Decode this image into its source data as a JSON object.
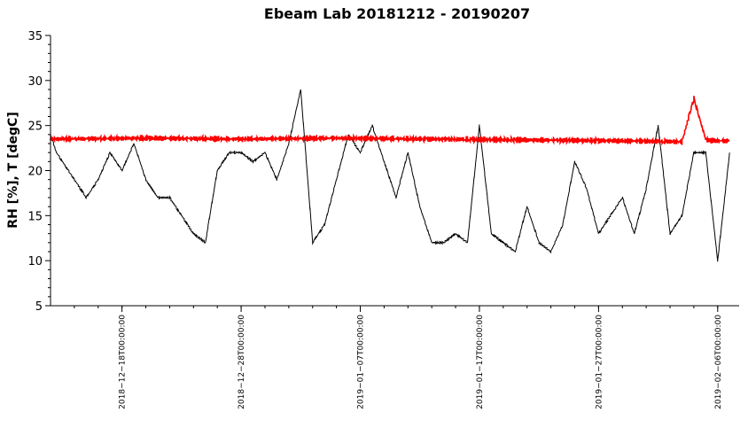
{
  "chart_data": {
    "type": "line",
    "title": "Ebeam Lab 20181212 - 20190207",
    "xlabel": "",
    "ylabel": "RH [%], T [degC]",
    "x_range": [
      "2018-12-12",
      "2019-02-07"
    ],
    "ylim": [
      5,
      35
    ],
    "yticks": [
      5,
      10,
      15,
      20,
      25,
      30,
      35
    ],
    "xticks": [
      "2018-12-18T00:00:00",
      "2018-12-28T00:00:00",
      "2019-01-07T00:00:00",
      "2019-01-17T00:00:00",
      "2019-01-27T00:00:00",
      "2019-02-06T00:00:00"
    ],
    "grid": false,
    "legend": "none",
    "series": [
      {
        "color": "#000000",
        "x": [
          "2018-12-12",
          "2018-12-12T12:00",
          "2018-12-13",
          "2018-12-14",
          "2018-12-15",
          "2018-12-16",
          "2018-12-17",
          "2018-12-18",
          "2018-12-19",
          "2018-12-20",
          "2018-12-21",
          "2018-12-22",
          "2018-12-23",
          "2018-12-24",
          "2018-12-25",
          "2018-12-26",
          "2018-12-27",
          "2018-12-28",
          "2018-12-29",
          "2018-12-30",
          "2018-12-31",
          "2019-01-01",
          "2019-01-02",
          "2019-01-03",
          "2019-01-04",
          "2019-01-05",
          "2019-01-06",
          "2019-01-07",
          "2019-01-08",
          "2019-01-09",
          "2019-01-10",
          "2019-01-11",
          "2019-01-12",
          "2019-01-13",
          "2019-01-14",
          "2019-01-15",
          "2019-01-16",
          "2019-01-17",
          "2019-01-18",
          "2019-01-19",
          "2019-01-20",
          "2019-01-21",
          "2019-01-22",
          "2019-01-23",
          "2019-01-24",
          "2019-01-25",
          "2019-01-26",
          "2019-01-27",
          "2019-01-28",
          "2019-01-29",
          "2019-01-30",
          "2019-01-31",
          "2019-02-01",
          "2019-02-02",
          "2019-02-03",
          "2019-02-04",
          "2019-02-05",
          "2019-02-06",
          "2019-02-07"
        ],
        "values": [
          24,
          22,
          21,
          19,
          17,
          19,
          22,
          20,
          23,
          19,
          17,
          17,
          15,
          13,
          12,
          20,
          22,
          22,
          21,
          22,
          19,
          23,
          29,
          12,
          14,
          19,
          24,
          22,
          25,
          21,
          17,
          22,
          16,
          12,
          12,
          13,
          12,
          25,
          13,
          12,
          11,
          16,
          12,
          11,
          14,
          21,
          18,
          13,
          15,
          17,
          13,
          18,
          25,
          13,
          15,
          22,
          22,
          10,
          22
        ]
      },
      {
        "color": "#ff0000",
        "x": [
          "2018-12-12",
          "2018-12-20",
          "2018-12-28",
          "2019-01-05",
          "2019-01-13",
          "2019-01-21",
          "2019-01-29",
          "2019-02-03",
          "2019-02-04",
          "2019-02-05",
          "2019-02-06",
          "2019-02-07"
        ],
        "values": [
          23.5,
          23.6,
          23.5,
          23.6,
          23.5,
          23.4,
          23.3,
          23.2,
          28,
          23.4,
          23.3,
          23.3
        ]
      }
    ]
  }
}
